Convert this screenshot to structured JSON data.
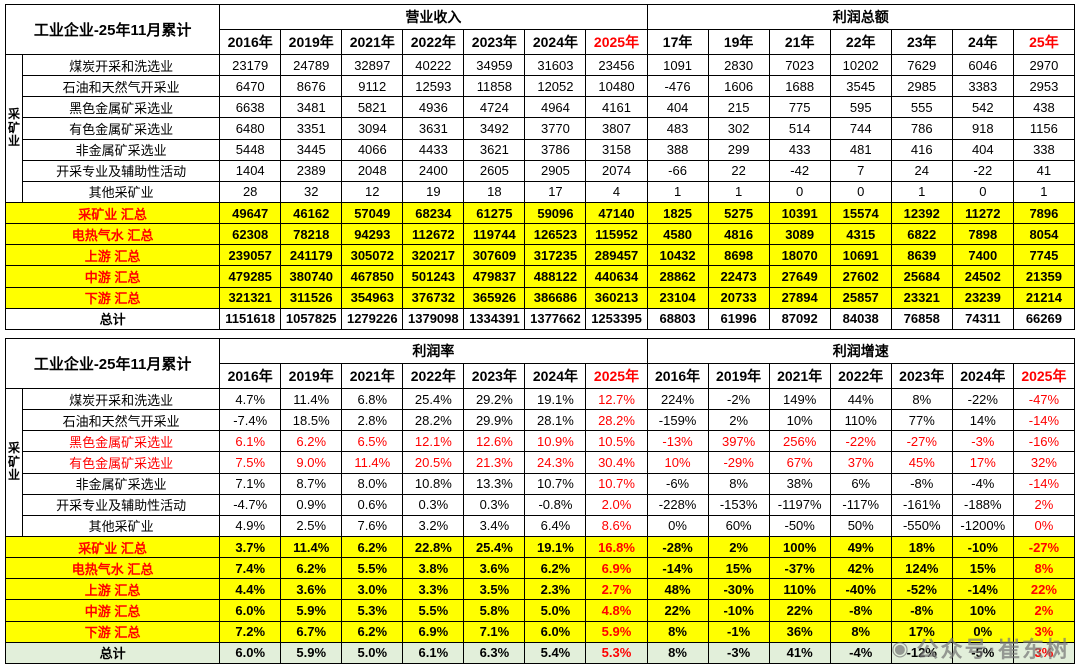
{
  "colors": {
    "accent_red": "#FF0000",
    "sum_yellow": "#FFFF00",
    "total_green": "#E2EFDA"
  },
  "watermark": {
    "text": "公众号·崔东树"
  },
  "top_table": {
    "title": "工业企业-25年11月累计",
    "side_label": "采矿业",
    "group_left": "营业收入",
    "group_right": "利润总额",
    "years_left": [
      "2016年",
      "2019年",
      "2021年",
      "2022年",
      "2023年",
      "2024年",
      "2025年"
    ],
    "years_right": [
      "17年",
      "19年",
      "21年",
      "22年",
      "23年",
      "24年",
      "25年"
    ],
    "rows": [
      {
        "kind": "ind",
        "label": "煤炭开采和洗选业",
        "left": [
          "23179",
          "24789",
          "32897",
          "40222",
          "34959",
          "31603",
          "23456"
        ],
        "right": [
          "1091",
          "2830",
          "7023",
          "10202",
          "7629",
          "6046",
          "2970"
        ]
      },
      {
        "kind": "ind",
        "label": "石油和天然气开采业",
        "left": [
          "6470",
          "8676",
          "9112",
          "12593",
          "11858",
          "12052",
          "10480"
        ],
        "right": [
          "-476",
          "1606",
          "1688",
          "3545",
          "2985",
          "3383",
          "2953"
        ]
      },
      {
        "kind": "ind",
        "label": "黑色金属矿采选业",
        "left": [
          "6638",
          "3481",
          "5821",
          "4936",
          "4724",
          "4964",
          "4161"
        ],
        "right": [
          "404",
          "215",
          "775",
          "595",
          "555",
          "542",
          "438"
        ]
      },
      {
        "kind": "ind",
        "label": "有色金属矿采选业",
        "left": [
          "6480",
          "3351",
          "3094",
          "3631",
          "3492",
          "3770",
          "3807"
        ],
        "right": [
          "483",
          "302",
          "514",
          "744",
          "786",
          "918",
          "1156"
        ]
      },
      {
        "kind": "ind",
        "label": "非金属矿采选业",
        "left": [
          "5448",
          "3445",
          "4066",
          "4433",
          "3621",
          "3786",
          "3158"
        ],
        "right": [
          "388",
          "299",
          "433",
          "481",
          "416",
          "404",
          "338"
        ]
      },
      {
        "kind": "ind",
        "label": "开采专业及辅助性活动",
        "left": [
          "1404",
          "2389",
          "2048",
          "2400",
          "2605",
          "2905",
          "2074"
        ],
        "right": [
          "-66",
          "22",
          "-42",
          "7",
          "24",
          "-22",
          "41"
        ]
      },
      {
        "kind": "ind",
        "label": "其他采矿业",
        "left": [
          "28",
          "32",
          "12",
          "19",
          "18",
          "17",
          "4"
        ],
        "right": [
          "1",
          "1",
          "0",
          "0",
          "1",
          "0",
          "1"
        ]
      },
      {
        "kind": "sum",
        "label": "采矿业 汇总",
        "left": [
          "49647",
          "46162",
          "57049",
          "68234",
          "61275",
          "59096",
          "47140"
        ],
        "right": [
          "1825",
          "5275",
          "10391",
          "15574",
          "12392",
          "11272",
          "7896"
        ]
      },
      {
        "kind": "sum",
        "label": "电热气水 汇总",
        "left": [
          "62308",
          "78218",
          "94293",
          "112672",
          "119744",
          "126523",
          "115952"
        ],
        "right": [
          "4580",
          "4816",
          "3089",
          "4315",
          "6822",
          "7898",
          "8054"
        ]
      },
      {
        "kind": "sum",
        "label": "上游 汇总",
        "left": [
          "239057",
          "241179",
          "305072",
          "320217",
          "307609",
          "317235",
          "289457"
        ],
        "right": [
          "10432",
          "8698",
          "18070",
          "10691",
          "8639",
          "7400",
          "7745"
        ]
      },
      {
        "kind": "sum",
        "label": "中游 汇总",
        "left": [
          "479285",
          "380740",
          "467850",
          "501243",
          "479837",
          "488122",
          "440634"
        ],
        "right": [
          "28862",
          "22473",
          "27649",
          "27602",
          "25684",
          "24502",
          "21359"
        ]
      },
      {
        "kind": "sum",
        "label": "下游 汇总",
        "left": [
          "321321",
          "311526",
          "354963",
          "376732",
          "365926",
          "386686",
          "360213"
        ],
        "right": [
          "23104",
          "20733",
          "27894",
          "25857",
          "23321",
          "23239",
          "21214"
        ]
      },
      {
        "kind": "total",
        "label": "总计",
        "left": [
          "1151618",
          "1057825",
          "1279226",
          "1379098",
          "1334391",
          "1377662",
          "1253395"
        ],
        "right": [
          "68803",
          "61996",
          "87092",
          "84038",
          "76858",
          "74311",
          "66269"
        ]
      }
    ]
  },
  "bottom_table": {
    "title": "工业企业-25年11月累计",
    "side_label": "采矿业",
    "group_left": "利润率",
    "group_right": "利润增速",
    "years_left": [
      "2016年",
      "2019年",
      "2021年",
      "2022年",
      "2023年",
      "2024年",
      "2025年"
    ],
    "years_right": [
      "2016年",
      "2019年",
      "2021年",
      "2022年",
      "2023年",
      "2024年",
      "2025年"
    ],
    "rows": [
      {
        "kind": "ind",
        "label": "煤炭开采和洗选业",
        "left": [
          "4.7%",
          "11.4%",
          "6.8%",
          "25.4%",
          "29.2%",
          "19.1%",
          "12.7%"
        ],
        "right": [
          "224%",
          "-2%",
          "149%",
          "44%",
          "8%",
          "-22%",
          "-47%"
        ]
      },
      {
        "kind": "ind",
        "label": "石油和天然气开采业",
        "left": [
          "-7.4%",
          "18.5%",
          "2.8%",
          "28.2%",
          "29.9%",
          "28.1%",
          "28.2%"
        ],
        "right": [
          "-159%",
          "2%",
          "10%",
          "110%",
          "77%",
          "14%",
          "-14%"
        ]
      },
      {
        "kind": "ind-red",
        "label": "黑色金属矿采选业",
        "left": [
          "6.1%",
          "6.2%",
          "6.5%",
          "12.1%",
          "12.6%",
          "10.9%",
          "10.5%"
        ],
        "right": [
          "-13%",
          "397%",
          "256%",
          "-22%",
          "-27%",
          "-3%",
          "-16%"
        ]
      },
      {
        "kind": "ind-red",
        "label": "有色金属矿采选业",
        "left": [
          "7.5%",
          "9.0%",
          "11.4%",
          "20.5%",
          "21.3%",
          "24.3%",
          "30.4%"
        ],
        "right": [
          "10%",
          "-29%",
          "67%",
          "37%",
          "45%",
          "17%",
          "32%"
        ]
      },
      {
        "kind": "ind",
        "label": "非金属矿采选业",
        "left": [
          "7.1%",
          "8.7%",
          "8.0%",
          "10.8%",
          "13.3%",
          "10.7%",
          "10.7%"
        ],
        "right": [
          "-6%",
          "8%",
          "38%",
          "6%",
          "-8%",
          "-4%",
          "-14%"
        ]
      },
      {
        "kind": "ind",
        "label": "开采专业及辅助性活动",
        "left": [
          "-4.7%",
          "0.9%",
          "0.6%",
          "0.3%",
          "0.3%",
          "-0.8%",
          "2.0%"
        ],
        "right": [
          "-228%",
          "-153%",
          "-1197%",
          "-117%",
          "-161%",
          "-188%",
          "2%"
        ]
      },
      {
        "kind": "ind",
        "label": "其他采矿业",
        "left": [
          "4.9%",
          "2.5%",
          "7.6%",
          "3.2%",
          "3.4%",
          "6.4%",
          "8.6%"
        ],
        "right": [
          "0%",
          "60%",
          "-50%",
          "50%",
          "-550%",
          "-1200%",
          "0%"
        ]
      },
      {
        "kind": "sum",
        "label": "采矿业 汇总",
        "left": [
          "3.7%",
          "11.4%",
          "6.2%",
          "22.8%",
          "25.4%",
          "19.1%",
          "16.8%"
        ],
        "right": [
          "-28%",
          "2%",
          "100%",
          "49%",
          "18%",
          "-10%",
          "-27%"
        ]
      },
      {
        "kind": "sum",
        "label": "电热气水 汇总",
        "left": [
          "7.4%",
          "6.2%",
          "5.5%",
          "3.8%",
          "3.6%",
          "6.2%",
          "6.9%"
        ],
        "right": [
          "-14%",
          "15%",
          "-37%",
          "42%",
          "124%",
          "15%",
          "8%"
        ]
      },
      {
        "kind": "sum",
        "label": "上游 汇总",
        "left": [
          "4.4%",
          "3.6%",
          "3.0%",
          "3.3%",
          "3.5%",
          "2.3%",
          "2.7%"
        ],
        "right": [
          "48%",
          "-30%",
          "110%",
          "-40%",
          "-52%",
          "-14%",
          "22%"
        ]
      },
      {
        "kind": "sum",
        "label": "中游 汇总",
        "left": [
          "6.0%",
          "5.9%",
          "5.3%",
          "5.5%",
          "5.8%",
          "5.0%",
          "4.8%"
        ],
        "right": [
          "22%",
          "-10%",
          "22%",
          "-8%",
          "-8%",
          "10%",
          "2%"
        ]
      },
      {
        "kind": "sum",
        "label": "下游 汇总",
        "left": [
          "7.2%",
          "6.7%",
          "6.2%",
          "6.9%",
          "7.1%",
          "6.0%",
          "5.9%"
        ],
        "right": [
          "8%",
          "-1%",
          "36%",
          "8%",
          "17%",
          "0%",
          "3%"
        ]
      },
      {
        "kind": "total",
        "label": "总计",
        "left": [
          "6.0%",
          "5.9%",
          "5.0%",
          "6.1%",
          "6.3%",
          "5.4%",
          "5.3%"
        ],
        "right": [
          "8%",
          "-3%",
          "41%",
          "-4%",
          "-12%",
          "-5%",
          "3%"
        ]
      }
    ]
  }
}
